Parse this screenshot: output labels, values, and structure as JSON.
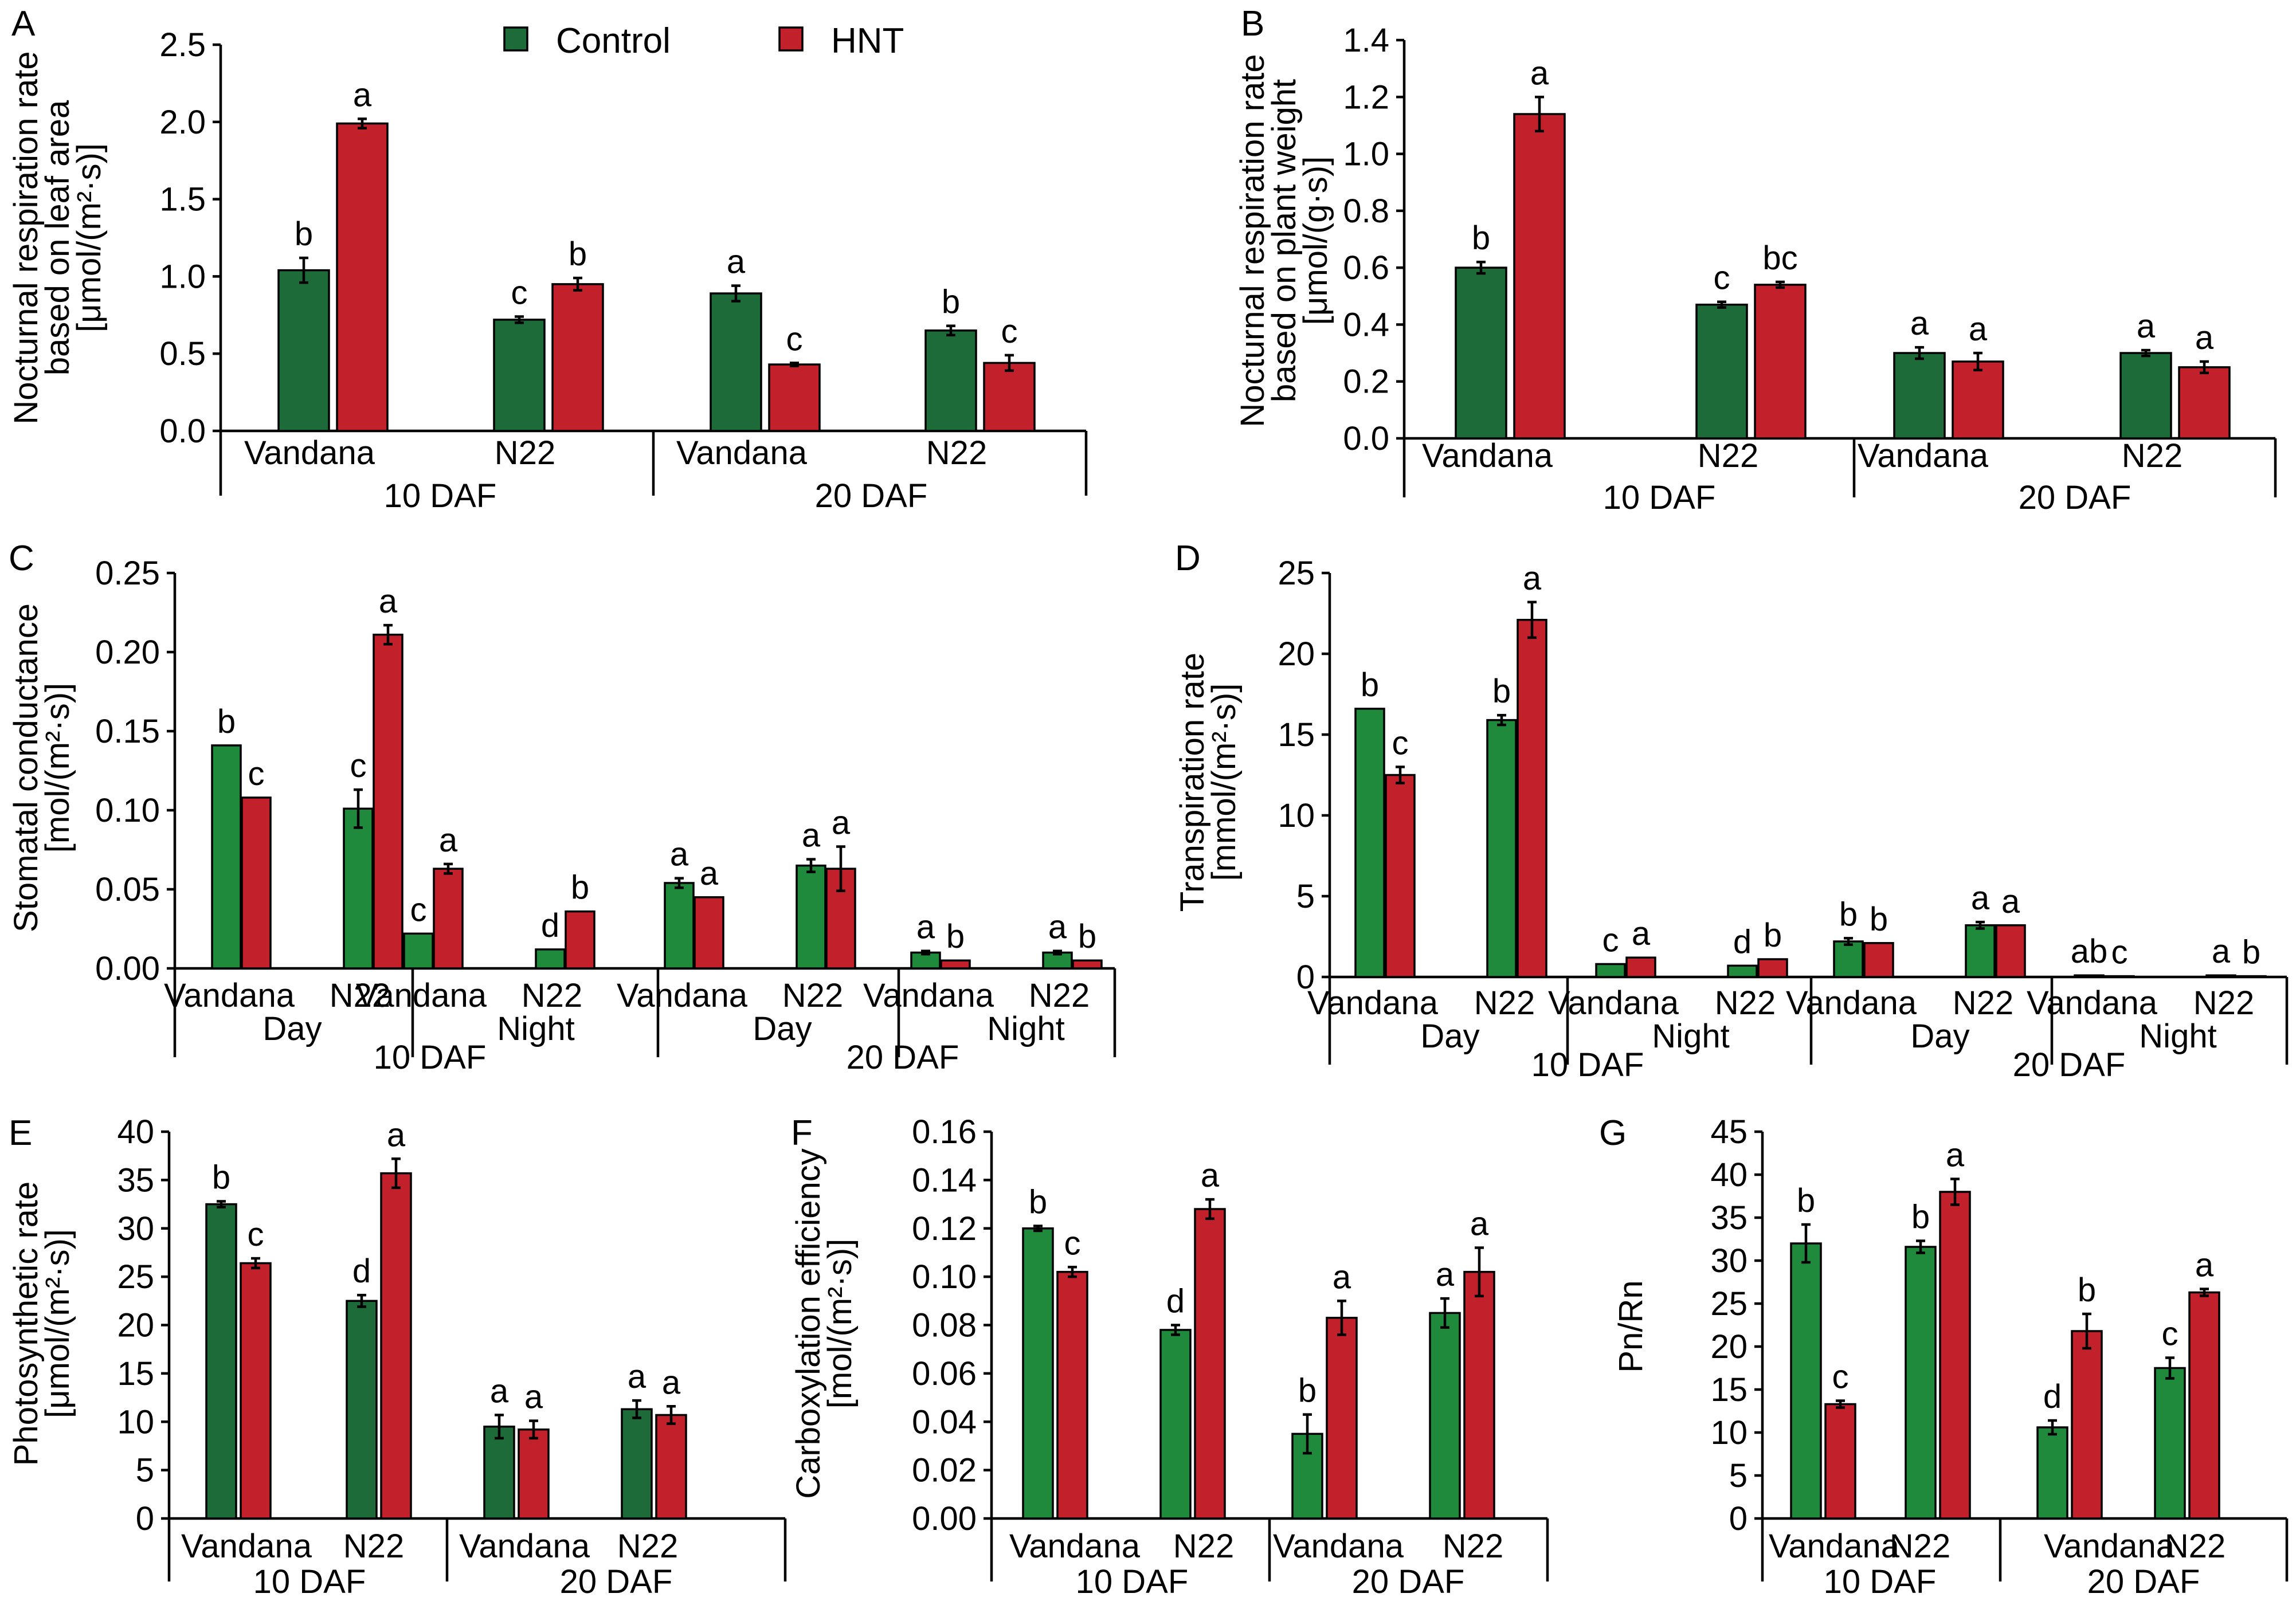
{
  "legend": {
    "items": [
      {
        "name": "Control",
        "color": "#1e6b3a"
      },
      {
        "name": "HNT",
        "color": "#c2202b"
      }
    ]
  },
  "chart_data": [
    {
      "panel": "A",
      "type": "bar",
      "ylabel": [
        "Nocturnal respiration rate",
        "based on leaf area",
        "[μmol/(m²·s)]"
      ],
      "ylim": [
        0,
        2.5
      ],
      "yticks": [
        "0.0",
        "0.5",
        "1.0",
        "1.5",
        "2.0",
        "2.5"
      ],
      "control_color": "#1e6b3a",
      "categories": [
        "Vandana",
        "N22",
        "Vandana",
        "N22"
      ],
      "groups": [
        "10 DAF",
        "20 DAF"
      ],
      "series": [
        {
          "name": "Control",
          "values": [
            1.04,
            0.72,
            0.89,
            0.65
          ],
          "errors": [
            0.08,
            0.02,
            0.05,
            0.03
          ],
          "letters": [
            "b",
            "c",
            "a",
            "b"
          ]
        },
        {
          "name": "HNT",
          "values": [
            1.99,
            0.95,
            0.43,
            0.44
          ],
          "errors": [
            0.03,
            0.04,
            0.01,
            0.05
          ],
          "letters": [
            "a",
            "b",
            "c",
            "c"
          ]
        }
      ]
    },
    {
      "panel": "B",
      "type": "bar",
      "ylabel": [
        "Nocturnal respiration rate",
        "based on plant weight",
        "[μmol/(g·s)]"
      ],
      "ylim": [
        0,
        1.4
      ],
      "yticks": [
        "0.0",
        "0.2",
        "0.4",
        "0.6",
        "0.8",
        "1.0",
        "1.2",
        "1.4"
      ],
      "control_color": "#1e6b3a",
      "categories": [
        "Vandana",
        "N22",
        "Vandana",
        "N22"
      ],
      "groups": [
        "10 DAF",
        "20 DAF"
      ],
      "series": [
        {
          "name": "Control",
          "values": [
            0.6,
            0.47,
            0.3,
            0.3
          ],
          "errors": [
            0.02,
            0.01,
            0.02,
            0.01
          ],
          "letters": [
            "b",
            "c",
            "a",
            "a"
          ]
        },
        {
          "name": "HNT",
          "values": [
            1.14,
            0.54,
            0.27,
            0.25
          ],
          "errors": [
            0.06,
            0.01,
            0.03,
            0.02
          ],
          "letters": [
            "a",
            "bc",
            "a",
            "a"
          ]
        }
      ]
    },
    {
      "panel": "C",
      "type": "bar",
      "ylabel": [
        "Stomatal conductance",
        "[mol/(m²·s)]"
      ],
      "ylim": [
        0,
        0.25
      ],
      "yticks": [
        "0.00",
        "0.05",
        "0.10",
        "0.15",
        "0.20",
        "0.25"
      ],
      "control_color": "#1f8a3b",
      "categories": [
        "Vandana",
        "N22",
        "Vandana",
        "N22",
        "Vandana",
        "N22",
        "Vandana",
        "N22"
      ],
      "subgroups": [
        "Day",
        "Night",
        "Day",
        "Night"
      ],
      "groups": [
        "10 DAF",
        "20 DAF"
      ],
      "series": [
        {
          "name": "Control",
          "values": [
            0.141,
            0.101,
            0.022,
            0.012,
            0.054,
            0.065,
            0.01,
            0.01
          ],
          "errors": [
            0.0,
            0.012,
            0.0,
            0.0,
            0.003,
            0.004,
            0.001,
            0.001
          ],
          "letters": [
            "b",
            "c",
            "c",
            "d",
            "a",
            "a",
            "a",
            "a"
          ]
        },
        {
          "name": "HNT",
          "values": [
            0.108,
            0.211,
            0.063,
            0.036,
            0.045,
            0.063,
            0.005,
            0.005
          ],
          "errors": [
            0.0,
            0.006,
            0.003,
            0.0,
            0.0,
            0.014,
            0.0,
            0.0
          ],
          "letters": [
            "c",
            "a",
            "a",
            "b",
            "a",
            "a",
            "b",
            "b"
          ]
        }
      ]
    },
    {
      "panel": "D",
      "type": "bar",
      "ylabel": [
        "Transpiration rate",
        "[mmol/(m²·s)]"
      ],
      "ylim": [
        0,
        25
      ],
      "yticks": [
        "0",
        "5",
        "10",
        "15",
        "20",
        "25"
      ],
      "control_color": "#1f8a3b",
      "categories": [
        "Vandana",
        "N22",
        "Vandana",
        "N22",
        "Vandana",
        "N22",
        "Vandana",
        "N22"
      ],
      "subgroups": [
        "Day",
        "Night",
        "Day",
        "Night"
      ],
      "groups": [
        "10 DAF",
        "20 DAF"
      ],
      "series": [
        {
          "name": "Control",
          "values": [
            16.6,
            15.9,
            0.8,
            0.7,
            2.2,
            3.2,
            0.1,
            0.1
          ],
          "errors": [
            0.0,
            0.3,
            0.0,
            0.0,
            0.2,
            0.2,
            0.0,
            0.0
          ],
          "letters": [
            "b",
            "b",
            "c",
            "d",
            "b",
            "a",
            "ab",
            "a"
          ]
        },
        {
          "name": "HNT",
          "values": [
            12.5,
            22.1,
            1.2,
            1.1,
            2.1,
            3.2,
            0.05,
            0.05
          ],
          "errors": [
            0.5,
            1.1,
            0.0,
            0.0,
            0.0,
            0.0,
            0.0,
            0.0
          ],
          "letters": [
            "c",
            "a",
            "a",
            "b",
            "b",
            "a",
            "c",
            "b"
          ]
        }
      ]
    },
    {
      "panel": "E",
      "type": "bar",
      "ylabel": [
        "Photosynthetic rate",
        "[μmol/(m²·s)]"
      ],
      "ylim": [
        0,
        40
      ],
      "yticks": [
        "0",
        "5",
        "10",
        "15",
        "20",
        "25",
        "30",
        "35",
        "40"
      ],
      "control_color": "#1e6b3a",
      "categories": [
        "Vandana",
        "N22",
        "Vandana",
        "N22"
      ],
      "groups": [
        "10 DAF",
        "20 DAF"
      ],
      "series": [
        {
          "name": "Control",
          "values": [
            32.5,
            22.5,
            9.5,
            11.3
          ],
          "errors": [
            0.3,
            0.6,
            1.2,
            0.9
          ],
          "letters": [
            "b",
            "d",
            "a",
            "a"
          ]
        },
        {
          "name": "HNT",
          "values": [
            26.4,
            35.7,
            9.2,
            10.7
          ],
          "errors": [
            0.5,
            1.5,
            0.9,
            0.9
          ],
          "letters": [
            "c",
            "a",
            "a",
            "a"
          ]
        }
      ]
    },
    {
      "panel": "F",
      "type": "bar",
      "ylabel": [
        "Carboxylation efficiency",
        "[mol/(m²·s)]"
      ],
      "ylim": [
        0,
        0.16
      ],
      "yticks": [
        "0.00",
        "0.02",
        "0.04",
        "0.06",
        "0.08",
        "0.10",
        "0.12",
        "0.14",
        "0.16"
      ],
      "control_color": "#1f8a3b",
      "categories": [
        "Vandana",
        "N22",
        "Vandana",
        "N22"
      ],
      "groups": [
        "10 DAF",
        "20 DAF"
      ],
      "series": [
        {
          "name": "Control",
          "values": [
            0.12,
            0.078,
            0.035,
            0.085
          ],
          "errors": [
            0.001,
            0.002,
            0.008,
            0.006
          ],
          "letters": [
            "b",
            "d",
            "b",
            "a"
          ]
        },
        {
          "name": "HNT",
          "values": [
            0.102,
            0.128,
            0.083,
            0.102
          ],
          "errors": [
            0.002,
            0.004,
            0.007,
            0.01
          ],
          "letters": [
            "c",
            "a",
            "a",
            "a"
          ]
        }
      ]
    },
    {
      "panel": "G",
      "type": "bar",
      "ylabel": [
        "Pn/Rn"
      ],
      "ylim": [
        0,
        45
      ],
      "yticks": [
        "0",
        "5",
        "10",
        "15",
        "20",
        "25",
        "30",
        "35",
        "40",
        "45"
      ],
      "control_color": "#1f8a3b",
      "categories": [
        "Vandana",
        "N22",
        "Vandana",
        "N22"
      ],
      "groups": [
        "10 DAF",
        "20 DAF"
      ],
      "series": [
        {
          "name": "Control",
          "values": [
            32.0,
            31.6,
            10.6,
            17.5
          ],
          "errors": [
            2.2,
            0.7,
            0.8,
            1.2
          ],
          "letters": [
            "b",
            "b",
            "d",
            "c"
          ]
        },
        {
          "name": "HNT",
          "values": [
            13.3,
            38.0,
            21.8,
            26.3
          ],
          "errors": [
            0.4,
            1.5,
            2.0,
            0.4
          ],
          "letters": [
            "c",
            "a",
            "b",
            "a"
          ]
        }
      ]
    }
  ]
}
